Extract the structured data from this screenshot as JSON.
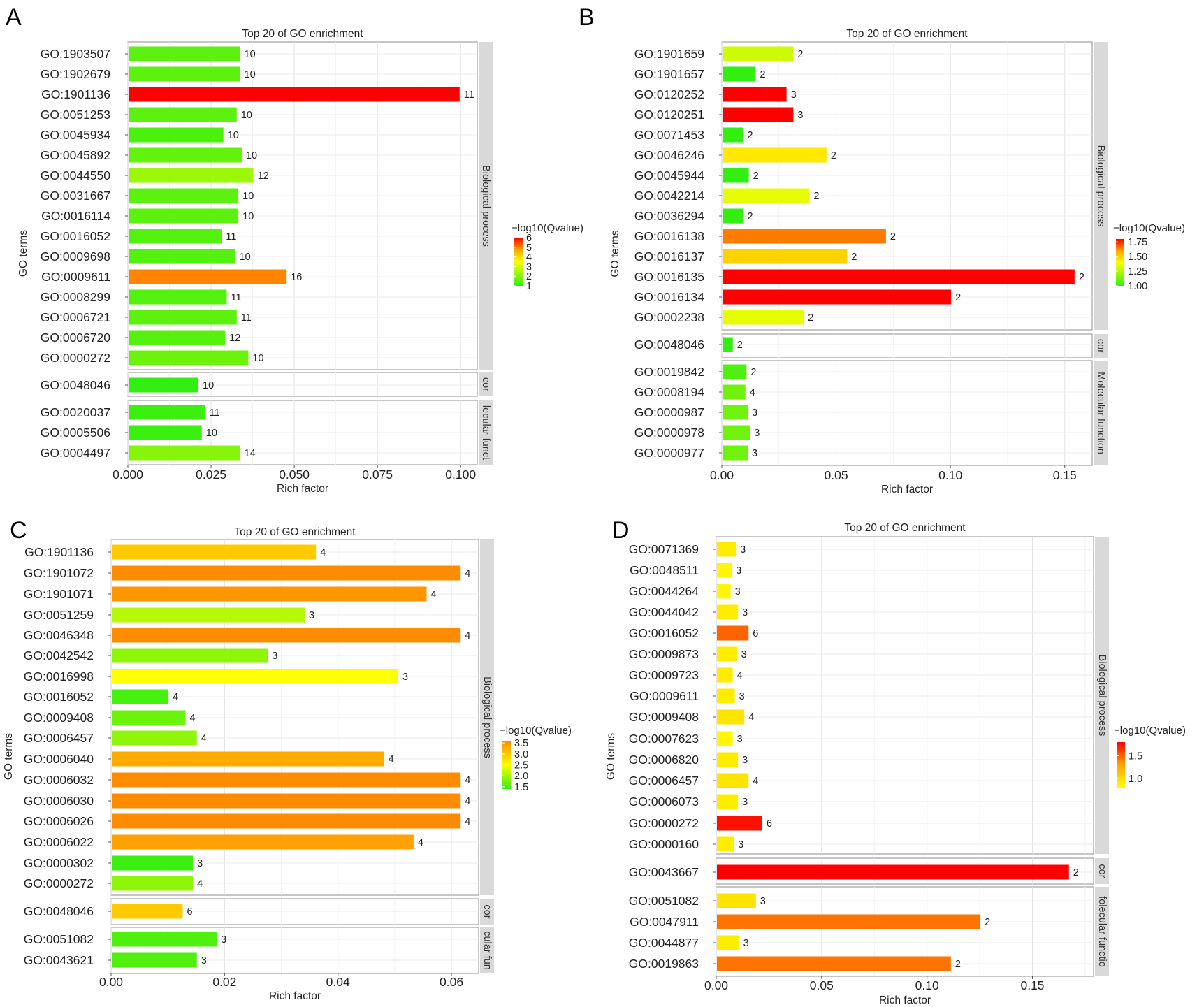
{
  "chart_data": [
    {
      "panel_label": "A",
      "type": "bar",
      "orientation": "horizontal",
      "title": "Top 20 of GO enrichment",
      "xlabel": "Rich factor",
      "ylabel": "GO terms",
      "xlim": [
        0,
        0.105
      ],
      "xticks": [
        0,
        0.025,
        0.05,
        0.075,
        0.1
      ],
      "xtick_labels": [
        "0.000",
        "0.025",
        "0.050",
        "0.075",
        "0.100"
      ],
      "legend": {
        "title": "−log10(Qvalue)",
        "labels": [
          "6",
          "5",
          "4",
          "3",
          "2",
          "1"
        ],
        "min": 1,
        "max": 6
      },
      "groups": [
        {
          "label": "Biological process",
          "terms": [
            {
              "term": "GO:1903507",
              "value": 0.0335,
              "count": "10",
              "q": 1.5
            },
            {
              "term": "GO:1902679",
              "value": 0.0335,
              "count": "10",
              "q": 1.5
            },
            {
              "term": "GO:1901136",
              "value": 0.0995,
              "count": "11",
              "q": 6.0
            },
            {
              "term": "GO:0051253",
              "value": 0.0325,
              "count": "10",
              "q": 1.5
            },
            {
              "term": "GO:0045934",
              "value": 0.0285,
              "count": "10",
              "q": 1.3
            },
            {
              "term": "GO:0045892",
              "value": 0.034,
              "count": "10",
              "q": 1.6
            },
            {
              "term": "GO:0044550",
              "value": 0.0375,
              "count": "12",
              "q": 2.3
            },
            {
              "term": "GO:0031667",
              "value": 0.033,
              "count": "10",
              "q": 1.5
            },
            {
              "term": "GO:0016114",
              "value": 0.033,
              "count": "10",
              "q": 1.5
            },
            {
              "term": "GO:0016052",
              "value": 0.028,
              "count": "11",
              "q": 1.4
            },
            {
              "term": "GO:0009698",
              "value": 0.032,
              "count": "10",
              "q": 1.4
            },
            {
              "term": "GO:0009611",
              "value": 0.0475,
              "count": "16",
              "q": 5.0
            },
            {
              "term": "GO:0008299",
              "value": 0.0295,
              "count": "11",
              "q": 1.4
            },
            {
              "term": "GO:0006721",
              "value": 0.0325,
              "count": "11",
              "q": 1.5
            },
            {
              "term": "GO:0006720",
              "value": 0.029,
              "count": "12",
              "q": 1.4
            },
            {
              "term": "GO:0000272",
              "value": 0.036,
              "count": "10",
              "q": 1.7
            }
          ]
        },
        {
          "label": "cor",
          "terms": [
            {
              "term": "GO:0048046",
              "value": 0.021,
              "count": "10",
              "q": 1.0
            }
          ]
        },
        {
          "label": "lecular funct",
          "terms": [
            {
              "term": "GO:0020037",
              "value": 0.023,
              "count": "11",
              "q": 1.1
            },
            {
              "term": "GO:0005506",
              "value": 0.022,
              "count": "10",
              "q": 1.1
            },
            {
              "term": "GO:0004497",
              "value": 0.0335,
              "count": "14",
              "q": 2.0
            }
          ]
        }
      ]
    },
    {
      "panel_label": "B",
      "type": "bar",
      "orientation": "horizontal",
      "title": "Top 20 of GO enrichment",
      "xlabel": "Rich factor",
      "ylabel": "GO terms",
      "xlim": [
        0,
        0.162
      ],
      "xticks": [
        0,
        0.05,
        0.1,
        0.15
      ],
      "xtick_labels": [
        "0.00",
        "0.05",
        "0.10",
        "0.15"
      ],
      "legend": {
        "title": "−log10(Qvalue)",
        "labels": [
          "1.75",
          "1.50",
          "1.25",
          "1.00"
        ],
        "min": 1.0,
        "max": 1.8
      },
      "groups": [
        {
          "label": "Biological process",
          "terms": [
            {
              "term": "GO:1901659",
              "value": 0.031,
              "count": "2",
              "q": 1.3
            },
            {
              "term": "GO:1901657",
              "value": 0.0145,
              "count": "2",
              "q": 1.0
            },
            {
              "term": "GO:0120252",
              "value": 0.028,
              "count": "3",
              "q": 1.8
            },
            {
              "term": "GO:0120251",
              "value": 0.031,
              "count": "3",
              "q": 1.8
            },
            {
              "term": "GO:0071453",
              "value": 0.009,
              "count": "2",
              "q": 1.0
            },
            {
              "term": "GO:0046246",
              "value": 0.0455,
              "count": "2",
              "q": 1.45
            },
            {
              "term": "GO:0045944",
              "value": 0.0115,
              "count": "2",
              "q": 1.0
            },
            {
              "term": "GO:0042214",
              "value": 0.038,
              "count": "2",
              "q": 1.35
            },
            {
              "term": "GO:0036294",
              "value": 0.009,
              "count": "2",
              "q": 1.0
            },
            {
              "term": "GO:0016138",
              "value": 0.0715,
              "count": "2",
              "q": 1.65
            },
            {
              "term": "GO:0016137",
              "value": 0.0545,
              "count": "2",
              "q": 1.5
            },
            {
              "term": "GO:0016135",
              "value": 0.154,
              "count": "2",
              "q": 1.8
            },
            {
              "term": "GO:0016134",
              "value": 0.1,
              "count": "2",
              "q": 1.8
            },
            {
              "term": "GO:0002238",
              "value": 0.0355,
              "count": "2",
              "q": 1.35
            }
          ]
        },
        {
          "label": "cor",
          "terms": [
            {
              "term": "GO:0048046",
              "value": 0.0045,
              "count": "2",
              "q": 1.0
            }
          ]
        },
        {
          "label": "Molecular function",
          "terms": [
            {
              "term": "GO:0019842",
              "value": 0.0105,
              "count": "2",
              "q": 1.05
            },
            {
              "term": "GO:0008194",
              "value": 0.01,
              "count": "4",
              "q": 1.12
            },
            {
              "term": "GO:0000987",
              "value": 0.011,
              "count": "3",
              "q": 1.12
            },
            {
              "term": "GO:0000978",
              "value": 0.012,
              "count": "3",
              "q": 1.12
            },
            {
              "term": "GO:0000977",
              "value": 0.011,
              "count": "3",
              "q": 1.12
            }
          ]
        }
      ]
    },
    {
      "panel_label": "C",
      "type": "bar",
      "orientation": "horizontal",
      "title": "Top 20 of GO enrichment",
      "xlabel": "Rich factor",
      "ylabel": "GO terms",
      "xlim": [
        0,
        0.0648
      ],
      "xticks": [
        0,
        0.02,
        0.04,
        0.06
      ],
      "xtick_labels": [
        "0.00",
        "0.02",
        "0.04",
        "0.06"
      ],
      "legend": {
        "title": "−log10(Qvalue)",
        "labels": [
          "3.5",
          "3.0",
          "2.5",
          "2.0",
          "1.5"
        ],
        "min": 1.4,
        "max": 3.6
      },
      "groups": [
        {
          "label": "Biological process",
          "terms": [
            {
              "term": "GO:1901136",
              "value": 0.036,
              "count": "4",
              "q": 3.0
            },
            {
              "term": "GO:1901072",
              "value": 0.0615,
              "count": "4",
              "q": 3.6
            },
            {
              "term": "GO:1901071",
              "value": 0.0555,
              "count": "4",
              "q": 3.5
            },
            {
              "term": "GO:0051259",
              "value": 0.034,
              "count": "3",
              "q": 2.1
            },
            {
              "term": "GO:0046348",
              "value": 0.0615,
              "count": "4",
              "q": 3.6
            },
            {
              "term": "GO:0042542",
              "value": 0.0275,
              "count": "3",
              "q": 1.9
            },
            {
              "term": "GO:0016998",
              "value": 0.0505,
              "count": "3",
              "q": 2.5
            },
            {
              "term": "GO:0016052",
              "value": 0.01,
              "count": "4",
              "q": 1.5
            },
            {
              "term": "GO:0009408",
              "value": 0.013,
              "count": "4",
              "q": 1.7
            },
            {
              "term": "GO:0006457",
              "value": 0.015,
              "count": "4",
              "q": 1.9
            },
            {
              "term": "GO:0006040",
              "value": 0.048,
              "count": "4",
              "q": 3.3
            },
            {
              "term": "GO:0006032",
              "value": 0.0615,
              "count": "4",
              "q": 3.6
            },
            {
              "term": "GO:0006030",
              "value": 0.0615,
              "count": "4",
              "q": 3.6
            },
            {
              "term": "GO:0006026",
              "value": 0.0615,
              "count": "4",
              "q": 3.6
            },
            {
              "term": "GO:0006022",
              "value": 0.0532,
              "count": "4",
              "q": 3.4
            },
            {
              "term": "GO:0000302",
              "value": 0.0143,
              "count": "3",
              "q": 1.45
            },
            {
              "term": "GO:0000272",
              "value": 0.0143,
              "count": "4",
              "q": 1.9
            }
          ]
        },
        {
          "label": "cor",
          "terms": [
            {
              "term": "GO:0048046",
              "value": 0.0125,
              "count": "6",
              "q": 3.0
            }
          ]
        },
        {
          "label": "cular fun",
          "terms": [
            {
              "term": "GO:0051082",
              "value": 0.0185,
              "count": "3",
              "q": 1.55
            },
            {
              "term": "GO:0043621",
              "value": 0.015,
              "count": "3",
              "q": 1.55
            }
          ]
        }
      ]
    },
    {
      "panel_label": "D",
      "type": "bar",
      "orientation": "horizontal",
      "title": "Top 20 of GO enrichment",
      "xlabel": "Rich factor",
      "ylabel": "GO terms",
      "xlim": [
        0,
        0.179
      ],
      "xticks": [
        0,
        0.05,
        0.1,
        0.15
      ],
      "xtick_labels": [
        "0.00",
        "0.05",
        "0.10",
        "0.15"
      ],
      "legend": {
        "title": "−log10(Qvalue)",
        "labels": [
          "1.5",
          "1.0"
        ],
        "min": 0.8,
        "max": 1.8
      },
      "groups": [
        {
          "label": "Biological process",
          "terms": [
            {
              "term": "GO:0071369",
              "value": 0.009,
              "count": "3",
              "q": 0.9
            },
            {
              "term": "GO:0048511",
              "value": 0.007,
              "count": "3",
              "q": 0.85
            },
            {
              "term": "GO:0044264",
              "value": 0.0065,
              "count": "3",
              "q": 0.85
            },
            {
              "term": "GO:0044042",
              "value": 0.01,
              "count": "3",
              "q": 0.9
            },
            {
              "term": "GO:0016052",
              "value": 0.015,
              "count": "6",
              "q": 1.5
            },
            {
              "term": "GO:0009873",
              "value": 0.0095,
              "count": "3",
              "q": 0.9
            },
            {
              "term": "GO:0009723",
              "value": 0.0075,
              "count": "4",
              "q": 0.9
            },
            {
              "term": "GO:0009611",
              "value": 0.0085,
              "count": "3",
              "q": 0.9
            },
            {
              "term": "GO:0009408",
              "value": 0.013,
              "count": "4",
              "q": 0.95
            },
            {
              "term": "GO:0007623",
              "value": 0.0075,
              "count": "3",
              "q": 0.85
            },
            {
              "term": "GO:0006820",
              "value": 0.01,
              "count": "3",
              "q": 0.9
            },
            {
              "term": "GO:0006457",
              "value": 0.015,
              "count": "4",
              "q": 0.95
            },
            {
              "term": "GO:0006073",
              "value": 0.01,
              "count": "3",
              "q": 0.9
            },
            {
              "term": "GO:0000272",
              "value": 0.0215,
              "count": "6",
              "q": 1.75
            },
            {
              "term": "GO:0000160",
              "value": 0.008,
              "count": "3",
              "q": 0.9
            }
          ]
        },
        {
          "label": "cor",
          "terms": [
            {
              "term": "GO:0043667",
              "value": 0.167,
              "count": "2",
              "q": 1.8
            }
          ]
        },
        {
          "label": "folecular functio",
          "terms": [
            {
              "term": "GO:0051082",
              "value": 0.0185,
              "count": "3",
              "q": 0.95
            },
            {
              "term": "GO:0047911",
              "value": 0.125,
              "count": "2",
              "q": 1.45
            },
            {
              "term": "GO:0044877",
              "value": 0.0105,
              "count": "3",
              "q": 0.9
            },
            {
              "term": "GO:0019863",
              "value": 0.111,
              "count": "2",
              "q": 1.45
            }
          ]
        }
      ]
    }
  ]
}
